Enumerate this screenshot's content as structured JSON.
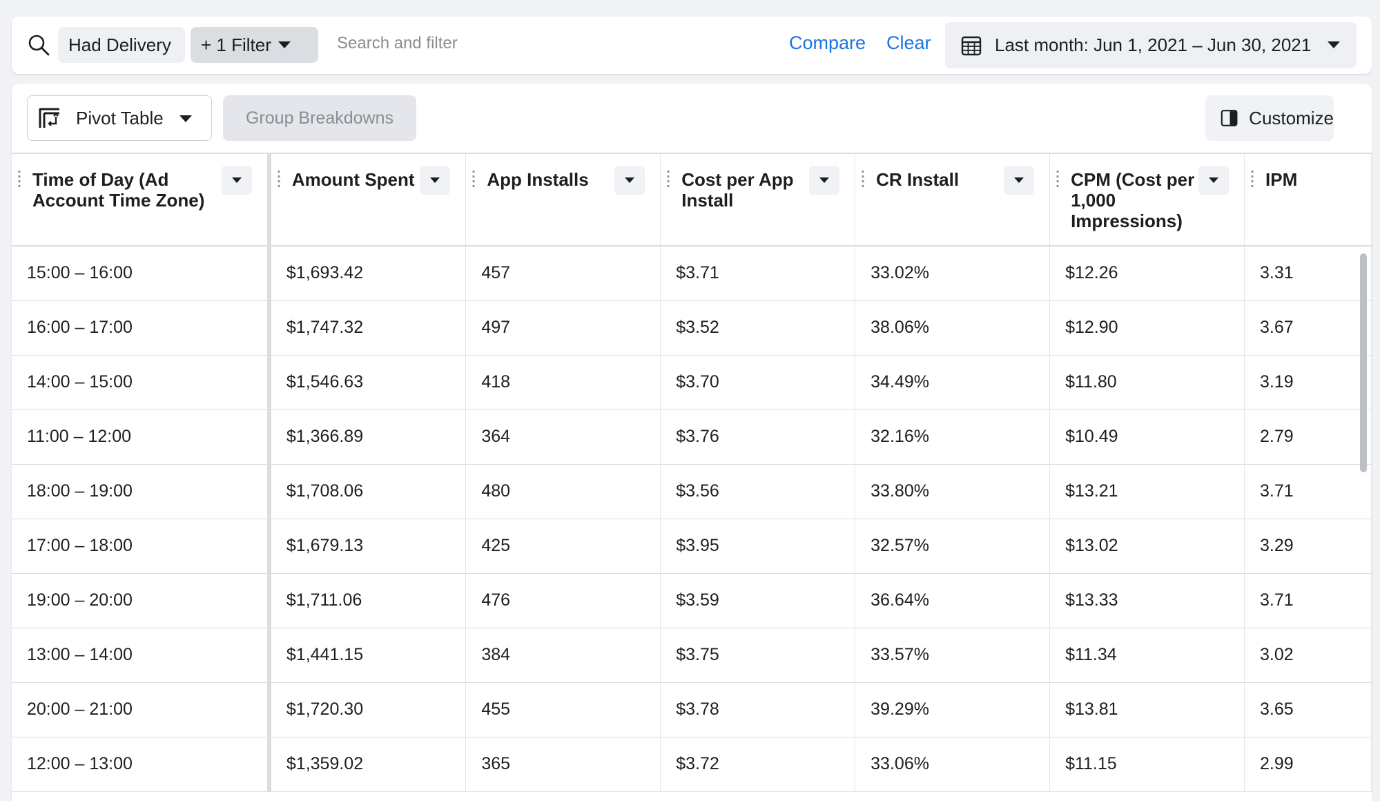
{
  "filter_bar": {
    "chips": [
      "Had Delivery",
      "+ 1 Filter"
    ],
    "search_placeholder": "Search and filter",
    "compare_label": "Compare",
    "clear_label": "Clear",
    "date_range": "Last month: Jun 1, 2021 – Jun 30, 2021",
    "icons": {
      "search": "search-icon",
      "calendar": "calendar-icon"
    }
  },
  "toolbar": {
    "view_label": "Pivot Table",
    "group_label": "Group Breakdowns",
    "customize_label": "Customize"
  },
  "table": {
    "columns": [
      "Time of Day (Ad Account Time Zone)",
      "Amount Spent",
      "App Installs",
      "Cost per App Install",
      "CR Install",
      "CPM (Cost per 1,000 Impressions)",
      "IPM"
    ],
    "rows": [
      [
        "15:00 – 16:00",
        "$1,693.42",
        "457",
        "$3.71",
        "33.02%",
        "$12.26",
        "3.31"
      ],
      [
        "16:00 – 17:00",
        "$1,747.32",
        "497",
        "$3.52",
        "38.06%",
        "$12.90",
        "3.67"
      ],
      [
        "14:00 – 15:00",
        "$1,546.63",
        "418",
        "$3.70",
        "34.49%",
        "$11.80",
        "3.19"
      ],
      [
        "11:00 – 12:00",
        "$1,366.89",
        "364",
        "$3.76",
        "32.16%",
        "$10.49",
        "2.79"
      ],
      [
        "18:00 – 19:00",
        "$1,708.06",
        "480",
        "$3.56",
        "33.80%",
        "$13.21",
        "3.71"
      ],
      [
        "17:00 – 18:00",
        "$1,679.13",
        "425",
        "$3.95",
        "32.57%",
        "$13.02",
        "3.29"
      ],
      [
        "19:00 – 20:00",
        "$1,711.06",
        "476",
        "$3.59",
        "36.64%",
        "$13.33",
        "3.71"
      ],
      [
        "13:00 – 14:00",
        "$1,441.15",
        "384",
        "$3.75",
        "33.57%",
        "$11.34",
        "3.02"
      ],
      [
        "20:00 – 21:00",
        "$1,720.30",
        "455",
        "$3.78",
        "39.29%",
        "$13.81",
        "3.65"
      ],
      [
        "12:00 – 13:00",
        "$1,359.02",
        "365",
        "$3.72",
        "33.06%",
        "$11.15",
        "2.99"
      ]
    ]
  },
  "colors": {
    "link": "#1b74e4",
    "chip_bg": "#eef0f3",
    "filter_chip_bg": "#dadde1"
  }
}
